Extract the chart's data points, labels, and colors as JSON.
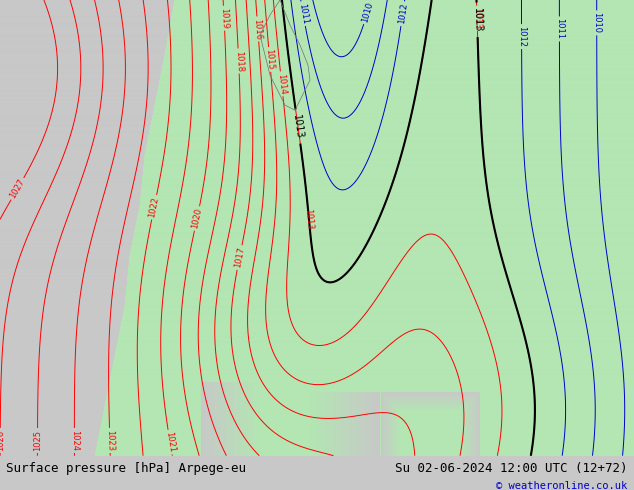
{
  "title_left": "Surface pressure [hPa] Arpege-eu",
  "title_right": "Su 02-06-2024 12:00 UTC (12+72)",
  "copyright": "© weatheronline.co.uk",
  "bg_color_land": "#b3e6b3",
  "bg_color_sea": "#c8c8c8",
  "red_contour_color": "#ff0000",
  "blue_contour_color": "#0000cc",
  "black_contour_color": "#000000",
  "gray_contour_color": "#888888",
  "fig_width": 6.34,
  "fig_height": 4.9,
  "dpi": 100,
  "bottom_bar_color": "#e0e0e0",
  "bottom_text_color": "#000000",
  "bottom_right_color": "#0000cc"
}
